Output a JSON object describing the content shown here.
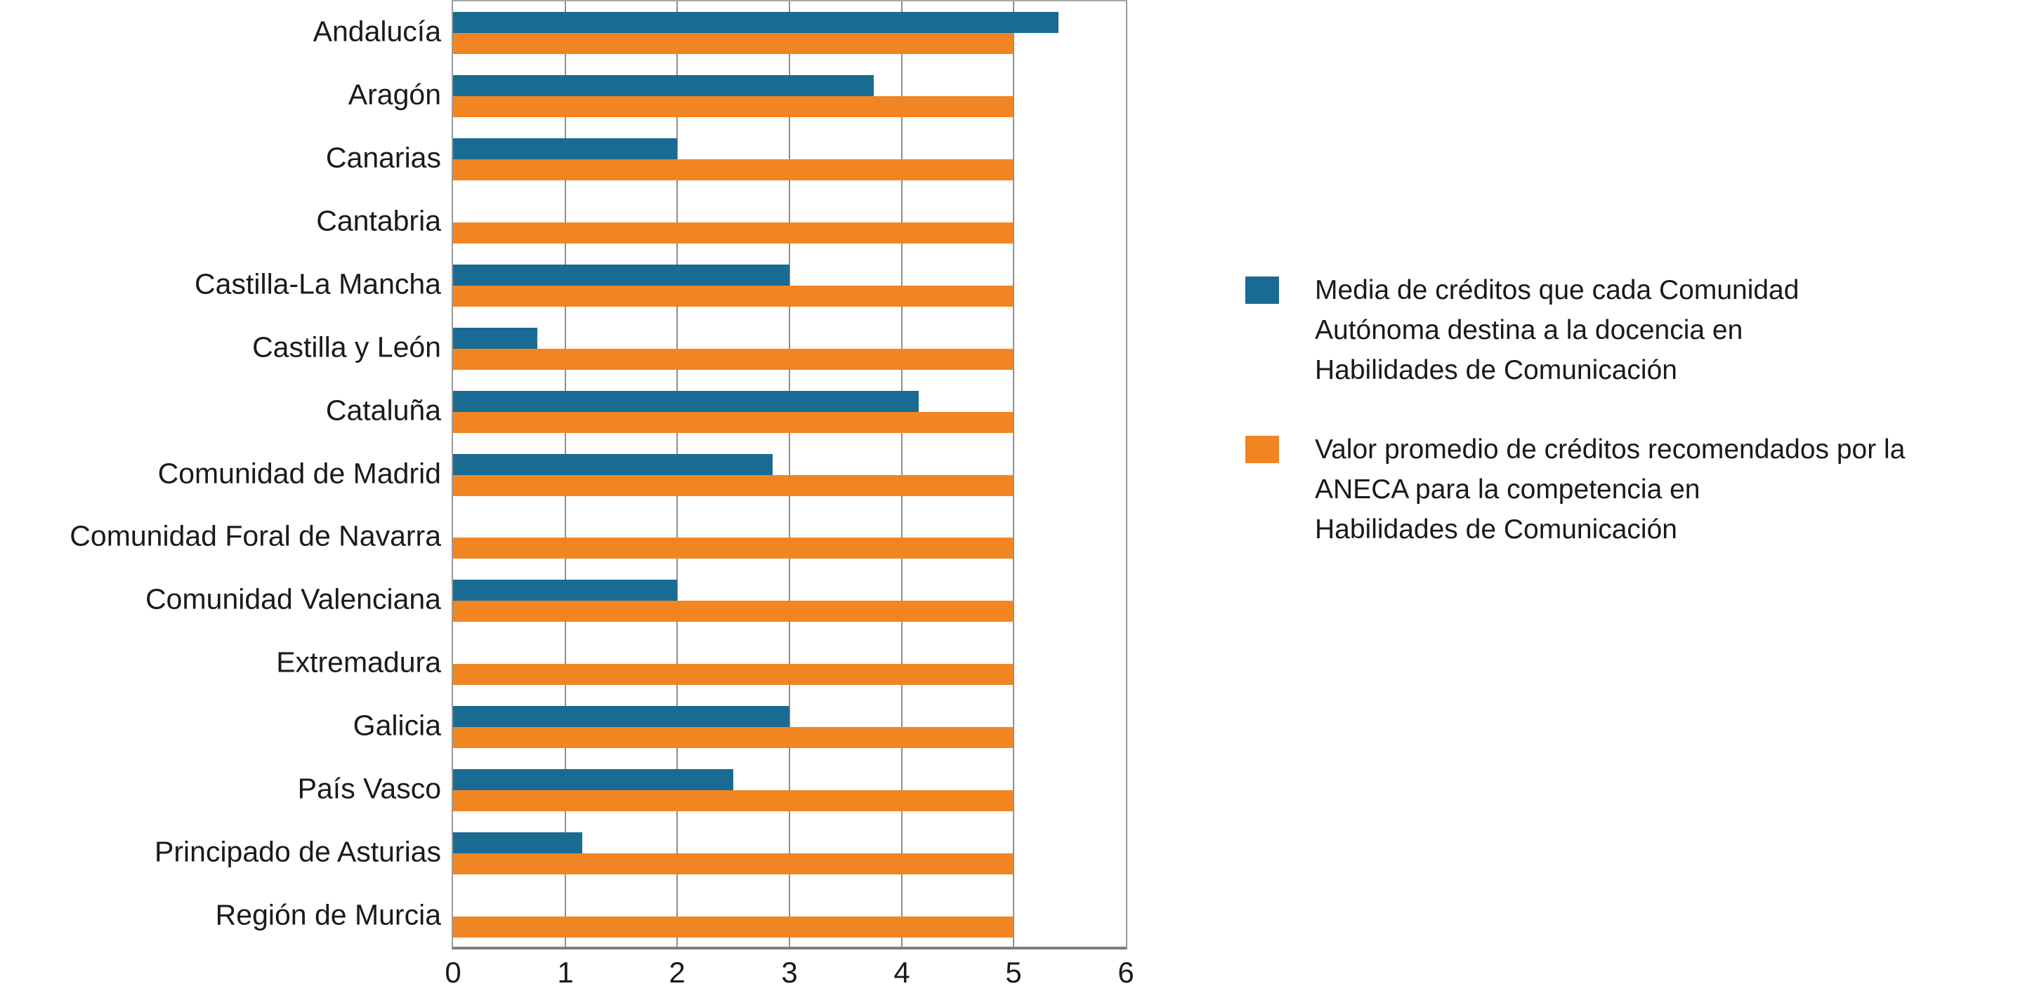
{
  "chart_data": {
    "type": "bar",
    "orientation": "horizontal",
    "title": "",
    "xlabel": "",
    "ylabel": "",
    "xlim": [
      0,
      6
    ],
    "x_ticks": [
      0,
      1,
      2,
      3,
      4,
      5,
      6
    ],
    "grid": "vertical",
    "legend_position": "right",
    "categories": [
      "Andalucía",
      "Aragón",
      "Canarias",
      "Cantabria",
      "Castilla-La Mancha",
      "Castilla y León",
      "Cataluña",
      "Comunidad de Madrid",
      "Comunidad Foral de Navarra",
      "Comunidad Valenciana",
      "Extremadura",
      "Galicia",
      "País Vasco",
      "Principado de Asturias",
      "Región de Murcia"
    ],
    "series": [
      {
        "name": "Media de créditos que cada Comunidad Autónoma destina a la docencia en Habilidades de Comunicación",
        "color": "#1a6b94",
        "values": [
          5.4,
          3.75,
          2,
          0,
          3,
          0.75,
          4.15,
          2.85,
          0,
          2,
          0,
          3,
          2.5,
          1.15,
          0
        ]
      },
      {
        "name": "Valor promedio de créditos recomendados por la ANECA para la competencia en Habilidades de Comunicación",
        "color": "#f08522",
        "values": [
          5,
          5,
          5,
          5,
          5,
          5,
          5,
          5,
          5,
          5,
          5,
          5,
          5,
          5,
          5
        ]
      }
    ]
  },
  "legend": {
    "items": [
      {
        "color": "#1a6b94",
        "lines": [
          "Media de créditos que cada Comunidad",
          "Autónoma destina a la docencia en",
          "Habilidades de Comunicación"
        ]
      },
      {
        "color": "#f08522",
        "lines": [
          "Valor promedio de créditos recomendados por la",
          "ANECA para la competencia en",
          "Habilidades de Comunicación"
        ]
      }
    ]
  },
  "colors": {
    "grid": "#8f8f8f",
    "axis_border": "#9a9a9a",
    "text": "#1a1a1a",
    "background": "#ffffff"
  }
}
